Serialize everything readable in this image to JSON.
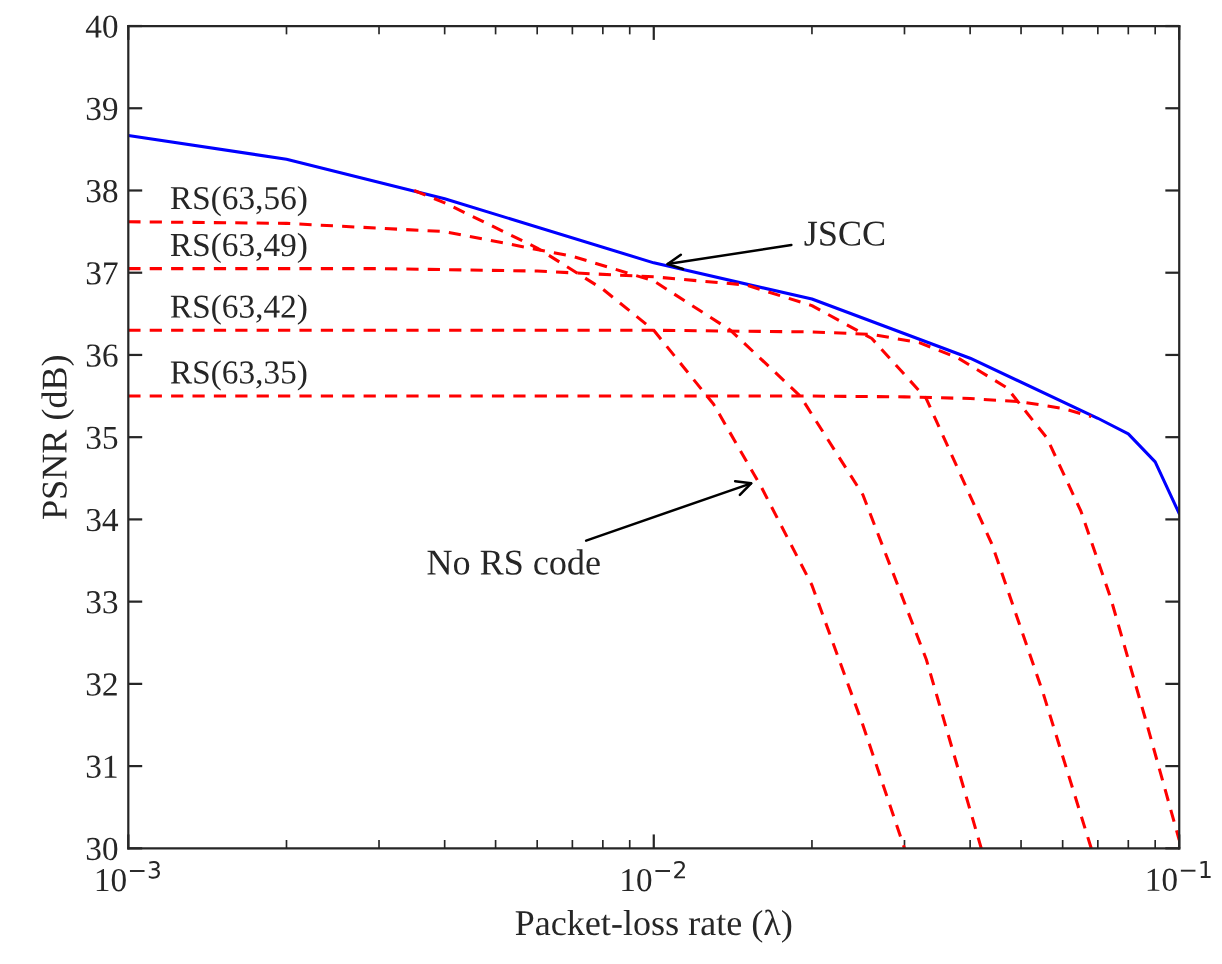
{
  "chart_data": {
    "type": "line",
    "xlabel": "Packet-loss rate (λ)",
    "ylabel": "PSNR (dB)",
    "log": "x",
    "xlim": [
      0.001,
      0.1
    ],
    "xticks": [
      {
        "value": 0.001,
        "label": "10$^{−3}$"
      },
      {
        "value": 0.01,
        "label": "10$^{−2}$"
      },
      {
        "value": 0.1,
        "label": "10$^{−1}$"
      }
    ],
    "ylim": [
      30,
      40
    ],
    "yticks": [
      30,
      31,
      32,
      33,
      34,
      35,
      36,
      37,
      38,
      39,
      40
    ],
    "grid": false,
    "marker": "none",
    "series": [
      {
        "color": "#0000ff",
        "line_style": "solid",
        "x": [
          0.001,
          0.002,
          0.004,
          0.01,
          0.02,
          0.04,
          0.07,
          0.08,
          0.09,
          0.1
        ],
        "values": [
          38.67,
          38.38,
          37.9,
          37.12,
          36.68,
          35.96,
          35.23,
          35.04,
          34.7,
          34.07
        ]
      },
      {
        "color": "#ff0000",
        "line_style": "dashed",
        "x": [
          0.0035,
          0.004,
          0.006,
          0.008,
          0.01,
          0.013,
          0.016,
          0.02,
          0.025,
          0.03
        ],
        "values": [
          38.0,
          37.85,
          37.3,
          36.8,
          36.3,
          35.4,
          34.4,
          33.2,
          31.5,
          30
        ]
      },
      {
        "color": "#ff0000",
        "line_style": "dashed",
        "x": [
          0.001,
          0.002,
          0.004,
          0.007,
          0.01,
          0.014,
          0.019,
          0.025,
          0.033,
          0.042
        ],
        "values": [
          37.62,
          37.6,
          37.5,
          37.2,
          36.9,
          36.3,
          35.5,
          34.3,
          32.3,
          30
        ]
      },
      {
        "color": "#ff0000",
        "line_style": "dashed",
        "x": [
          0.001,
          0.003,
          0.006,
          0.01,
          0.015,
          0.02,
          0.026,
          0.033,
          0.044,
          0.055,
          0.068
        ],
        "values": [
          37.05,
          37.05,
          37.02,
          36.95,
          36.85,
          36.6,
          36.2,
          35.47,
          33.7,
          31.9,
          30
        ]
      },
      {
        "color": "#ff0000",
        "line_style": "dashed",
        "x": [
          0.001,
          0.005,
          0.01,
          0.02,
          0.026,
          0.032,
          0.038,
          0.047,
          0.056,
          0.065,
          0.074,
          0.086,
          0.1
        ],
        "values": [
          36.3,
          36.3,
          36.3,
          36.28,
          36.25,
          36.15,
          35.96,
          35.6,
          34.99,
          34.1,
          33.05,
          31.6,
          30.1
        ]
      },
      {
        "color": "#ff0000",
        "line_style": "dashed",
        "x": [
          0.001,
          0.005,
          0.01,
          0.02,
          0.03,
          0.04,
          0.05,
          0.06,
          0.068
        ],
        "values": [
          35.5,
          35.5,
          35.5,
          35.5,
          35.49,
          35.47,
          35.43,
          35.35,
          35.25
        ]
      }
    ],
    "annotations": [
      {
        "text": "JSCC",
        "x": 0.0105,
        "y": 37.1
      },
      {
        "text": "No RS code",
        "x": 0.0155,
        "y": 34.45
      },
      {
        "text": "RS(63,56)",
        "x": 0.0012,
        "y": 37.62
      },
      {
        "text": "RS(63,49)",
        "x": 0.0012,
        "y": 37.05
      },
      {
        "text": "RS(63,42)",
        "x": 0.0012,
        "y": 36.3
      },
      {
        "text": "RS(63,35)",
        "x": 0.0012,
        "y": 35.5
      }
    ]
  }
}
